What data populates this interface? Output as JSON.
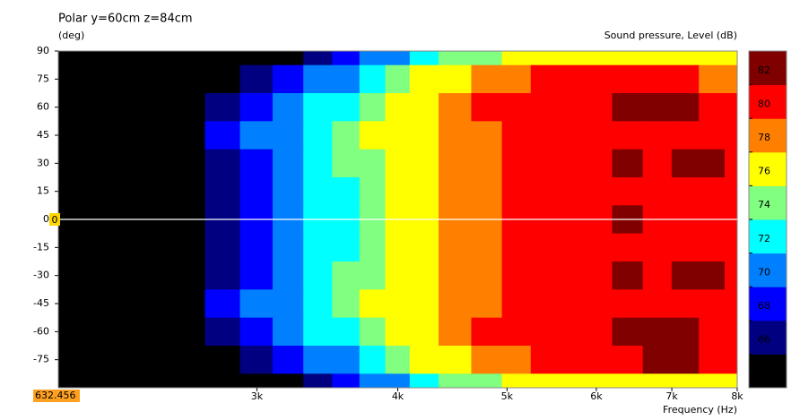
{
  "chart_data": {
    "type": "contour",
    "title": "Polar y=60cm z=84cm",
    "y_label": "(deg)",
    "x_label": "Frequency  (Hz)",
    "colorbar_label": "Sound pressure, Level  (dB)",
    "log_x": true,
    "xlim": [
      2000,
      8000
    ],
    "ylim": [
      -90,
      90
    ],
    "xticks": [
      {
        "value": 3000,
        "label": "3k"
      },
      {
        "value": 4000,
        "label": "4k"
      },
      {
        "value": 5000,
        "label": "5k"
      },
      {
        "value": 6000,
        "label": "6k"
      },
      {
        "value": 7000,
        "label": "7k"
      },
      {
        "value": 8000,
        "label": "8k"
      }
    ],
    "yticks": [
      90,
      75,
      60,
      45,
      30,
      15,
      0,
      -15,
      -30,
      -45,
      -60,
      -75
    ],
    "x": [
      2000,
      2200,
      2400,
      2600,
      2800,
      3000,
      3200,
      3400,
      3600,
      3800,
      4000,
      4200,
      4500,
      4800,
      5100,
      5400,
      5700,
      6000,
      6400,
      6800,
      7200,
      7600,
      8000
    ],
    "y": [
      90,
      75,
      60,
      45,
      30,
      15,
      0,
      -15,
      -30,
      -45,
      -60,
      -75,
      -90
    ],
    "z": [
      [
        53,
        55,
        57,
        59.5,
        62,
        64,
        65.5,
        67,
        68.5,
        70,
        71.5,
        73,
        74.5,
        75.5,
        76.5,
        77,
        77.5,
        77.5,
        77.5,
        77.5,
        77,
        76.5,
        76.5
      ],
      [
        56,
        58,
        60,
        62.5,
        65,
        67,
        68.5,
        70,
        71.5,
        73,
        74.5,
        76,
        77.5,
        78.5,
        79.5,
        80,
        80.5,
        80.5,
        80.5,
        80.5,
        80,
        79.5,
        79.5
      ],
      [
        58,
        60,
        62,
        64.5,
        67,
        69,
        70.5,
        72,
        73.5,
        75,
        76,
        77,
        78.5,
        80,
        81,
        81,
        81,
        81.5,
        82.5,
        82.5,
        82,
        81,
        81
      ],
      [
        59,
        61,
        63,
        65.5,
        68,
        70,
        71.5,
        73,
        74.5,
        76,
        77,
        77.5,
        78.5,
        79.5,
        80,
        80.5,
        81,
        81,
        81,
        81,
        81,
        81,
        81
      ],
      [
        58.5,
        60.5,
        62.5,
        65,
        67.5,
        69.5,
        71,
        72.5,
        74,
        75.5,
        76.5,
        77.5,
        78.5,
        79.5,
        80,
        80.5,
        81,
        81,
        82.5,
        81,
        82.5,
        82,
        81.5
      ],
      [
        58,
        60,
        62,
        64.5,
        67,
        69,
        70.5,
        72,
        73.5,
        75,
        76,
        77,
        78.5,
        79.5,
        80.5,
        81,
        81,
        81,
        81,
        81,
        81,
        81,
        80.5
      ],
      [
        58,
        60,
        62,
        64.5,
        67,
        69,
        70.5,
        72,
        73.5,
        75,
        76,
        77,
        78.5,
        79.5,
        80.5,
        81,
        81,
        81,
        82.5,
        81,
        81,
        80.5,
        80.5
      ],
      [
        58,
        60,
        62,
        64.5,
        67,
        69,
        70.5,
        72,
        73.5,
        75,
        76,
        77,
        78.5,
        79.5,
        80.5,
        81,
        81,
        81,
        81,
        81,
        81,
        81,
        80.5
      ],
      [
        58.5,
        60.5,
        62.5,
        65,
        67.5,
        69.5,
        71,
        72.5,
        74,
        75.5,
        76.5,
        77.5,
        78.5,
        79.5,
        80,
        80.5,
        81,
        81,
        82.5,
        81,
        82.5,
        82,
        81.5
      ],
      [
        59,
        61,
        63,
        65.5,
        68,
        70,
        71.5,
        73,
        74.5,
        76,
        77,
        77.5,
        78.5,
        79.5,
        80,
        80.5,
        81,
        81,
        81,
        81,
        81,
        81,
        81
      ],
      [
        58,
        60,
        62,
        64.5,
        67,
        69,
        70.5,
        72,
        73.5,
        75,
        76,
        77,
        78.5,
        80,
        81,
        81,
        81,
        81.5,
        82.5,
        82.5,
        82,
        81,
        81
      ],
      [
        56,
        58,
        60,
        62.5,
        65,
        67,
        68.5,
        70,
        71.5,
        73,
        74.5,
        76,
        77.5,
        78.5,
        79.5,
        80,
        80.5,
        80.5,
        81,
        82.5,
        82.5,
        80.5,
        80.5
      ],
      [
        53,
        55,
        57,
        59.5,
        62,
        64,
        65.5,
        67,
        68.5,
        70,
        71.5,
        73,
        74.5,
        75.5,
        76.5,
        77,
        77.5,
        77.5,
        77.5,
        77.5,
        77,
        76.5,
        76.5
      ]
    ],
    "levels": [
      66,
      68,
      70,
      72,
      74,
      76,
      78,
      80,
      82
    ],
    "colors": [
      "#000000",
      "#000080",
      "#0000ff",
      "#0080ff",
      "#00ffff",
      "#80ff80",
      "#ffff00",
      "#ff8000",
      "#ff0000",
      "#800000"
    ],
    "cursor": {
      "y": 0,
      "x_readout": 632.456
    }
  }
}
